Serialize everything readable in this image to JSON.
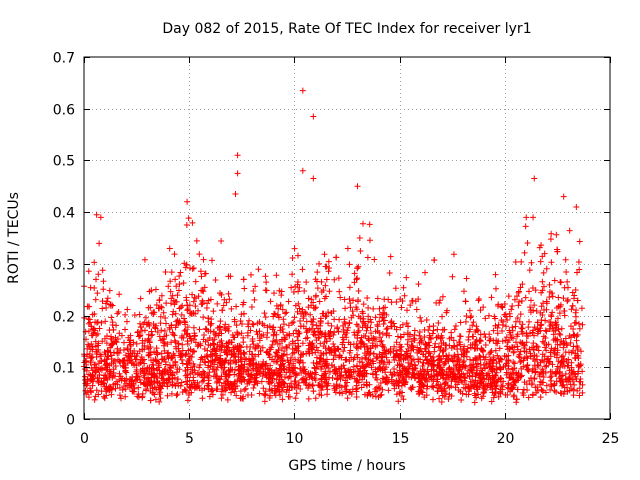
{
  "chart_data": {
    "type": "scatter",
    "title": "Day 082 of 2015, Rate Of TEC Index for receiver lyr1",
    "xlabel": "GPS time / hours",
    "ylabel": "ROTI / TECUs",
    "xlim": [
      0,
      25
    ],
    "ylim": [
      0,
      0.7
    ],
    "xticks": [
      0,
      5,
      10,
      15,
      20,
      25
    ],
    "yticks": [
      0,
      0.1,
      0.2,
      0.3,
      0.4,
      0.5,
      0.6,
      0.7
    ],
    "xtick_labels": [
      "0",
      "5",
      "10",
      "15",
      "20",
      "25"
    ],
    "ytick_labels": [
      "0",
      "0.1",
      "0.2",
      "0.3",
      "0.4",
      "0.5",
      "0.6",
      "0.7"
    ],
    "grid": true,
    "marker": "+",
    "series": [
      {
        "name": "ROTI",
        "color": "#ff0000",
        "x_range": [
          0,
          23.7
        ],
        "notable_points": [
          {
            "x": 0.6,
            "y": 0.395
          },
          {
            "x": 4.9,
            "y": 0.42
          },
          {
            "x": 7.3,
            "y": 0.51
          },
          {
            "x": 7.3,
            "y": 0.475
          },
          {
            "x": 7.2,
            "y": 0.435
          },
          {
            "x": 10.4,
            "y": 0.635
          },
          {
            "x": 10.9,
            "y": 0.585
          },
          {
            "x": 10.4,
            "y": 0.48
          },
          {
            "x": 10.9,
            "y": 0.465
          },
          {
            "x": 13.0,
            "y": 0.45
          },
          {
            "x": 21.4,
            "y": 0.465
          },
          {
            "x": 22.8,
            "y": 0.43
          },
          {
            "x": 23.4,
            "y": 0.41
          }
        ]
      }
    ]
  }
}
